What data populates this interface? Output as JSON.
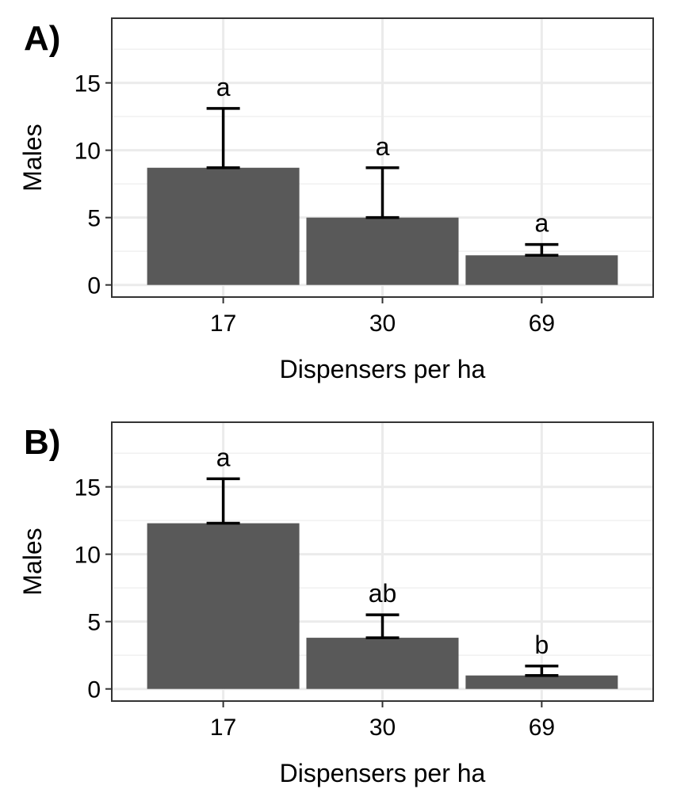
{
  "chart_data": [
    {
      "type": "bar",
      "panel_label": "A)",
      "categories": [
        "17",
        "30",
        "69"
      ],
      "values": [
        8.7,
        5.0,
        2.2
      ],
      "error_upper": [
        13.1,
        8.7,
        3.0
      ],
      "significance_letters": [
        "a",
        "a",
        "a"
      ],
      "xlabel": "Dispensers per ha",
      "ylabel": "Males",
      "ylim": [
        -0.9,
        19.8
      ],
      "yticks": [
        0,
        5,
        10,
        15
      ],
      "yticks_labels": [
        "0",
        "5",
        "10",
        "15"
      ],
      "grid": true,
      "legend": "none",
      "bar_color": "#595959"
    },
    {
      "type": "bar",
      "panel_label": "B)",
      "categories": [
        "17",
        "30",
        "69"
      ],
      "values": [
        12.3,
        3.8,
        1.0
      ],
      "error_upper": [
        15.6,
        5.5,
        1.7
      ],
      "significance_letters": [
        "a",
        "ab",
        "b"
      ],
      "xlabel": "Dispensers per ha",
      "ylabel": "Males",
      "ylim": [
        -0.9,
        19.8
      ],
      "yticks": [
        0,
        5,
        10,
        15
      ],
      "yticks_labels": [
        "0",
        "5",
        "10",
        "15"
      ],
      "grid": true,
      "legend": "none",
      "bar_color": "#595959"
    }
  ]
}
